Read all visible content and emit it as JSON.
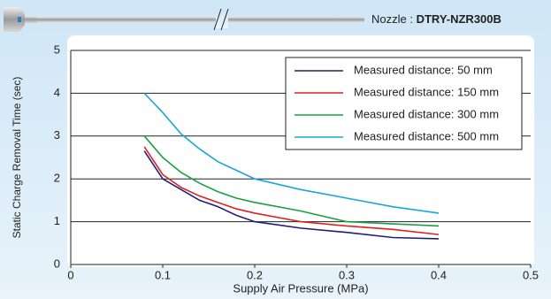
{
  "chart_data": {
    "type": "line",
    "header": {
      "prefix": "Nozzle : ",
      "model": "DTRY-NZR300B"
    },
    "x_label": "Supply Air Pressure (MPa)",
    "y_label": "Static Charge Removal Time (sec)",
    "x": [
      0.08,
      0.1,
      0.12,
      0.14,
      0.16,
      0.18,
      0.2,
      0.25,
      0.3,
      0.35,
      0.4
    ],
    "series": [
      {
        "name": "Measured distance: 50 mm",
        "color": "#1f1f7a",
        "values": [
          2.65,
          2.0,
          1.75,
          1.5,
          1.35,
          1.15,
          1.0,
          0.85,
          0.75,
          0.63,
          0.6
        ]
      },
      {
        "name": "Measured distance: 150 mm",
        "color": "#e02020",
        "values": [
          2.75,
          2.1,
          1.8,
          1.6,
          1.45,
          1.3,
          1.2,
          1.0,
          0.9,
          0.82,
          0.7
        ]
      },
      {
        "name": "Measured distance: 300 mm",
        "color": "#1aa040",
        "values": [
          3.0,
          2.5,
          2.15,
          1.9,
          1.7,
          1.55,
          1.45,
          1.25,
          1.0,
          0.95,
          0.9
        ]
      },
      {
        "name": "Measured distance: 500 mm",
        "color": "#18a8d8",
        "values": [
          4.0,
          3.55,
          3.05,
          2.7,
          2.4,
          2.2,
          2.0,
          1.75,
          1.55,
          1.35,
          1.2
        ]
      }
    ],
    "xlim": [
      0,
      0.5
    ],
    "xticks": [
      0,
      0.1,
      0.2,
      0.3,
      0.4,
      0.5
    ],
    "ylim": [
      0,
      5
    ],
    "yticks": [
      0,
      1,
      2,
      3,
      4,
      5
    ],
    "grid": true,
    "legend": "upper right"
  }
}
